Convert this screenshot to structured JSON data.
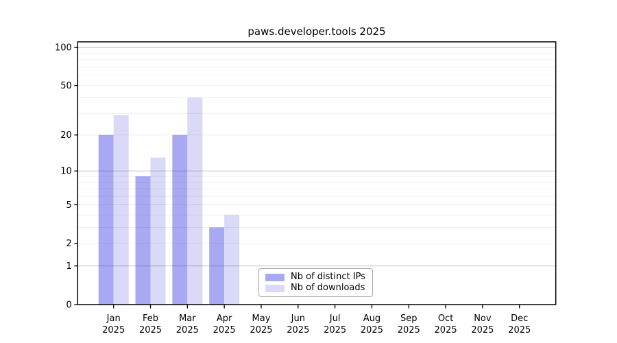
{
  "chart_data": {
    "type": "bar",
    "title": "paws.developer.tools 2025",
    "categories": [
      "Jan",
      "Feb",
      "Mar",
      "Apr",
      "May",
      "Jun",
      "Jul",
      "Aug",
      "Sep",
      "Oct",
      "Nov",
      "Dec"
    ],
    "category_sublabel": "2025",
    "series": [
      {
        "name": "Nb of distinct IPs",
        "color": "#a9a9f3",
        "values": [
          20,
          9,
          20,
          3,
          0,
          0,
          0,
          0,
          0,
          0,
          0,
          0
        ]
      },
      {
        "name": "Nb of downloads",
        "color": "#dadaf8",
        "values": [
          29,
          13,
          40,
          4,
          0,
          0,
          0,
          0,
          0,
          0,
          0,
          0
        ]
      }
    ],
    "xlabel": "",
    "ylabel": "",
    "y_axis": {
      "scale": "log1p",
      "ticks": [
        0,
        1,
        2,
        5,
        10,
        20,
        50,
        100
      ],
      "major_gridlines": [
        1,
        10,
        100
      ],
      "minor_gridlines": [
        2,
        3,
        4,
        5,
        6,
        7,
        8,
        9,
        20,
        30,
        40,
        50,
        60,
        70,
        80,
        90
      ],
      "ylim": [
        0,
        110
      ]
    },
    "legend": {
      "position": "lower-center",
      "entries": [
        "Nb of distinct IPs",
        "Nb of downloads"
      ]
    },
    "grid": true,
    "colors": {
      "major_grid": "rgba(0,0,0,0.24)",
      "minor_grid": "rgba(0,0,0,0.07)",
      "spine": "#000000",
      "background": "#ffffff"
    }
  }
}
